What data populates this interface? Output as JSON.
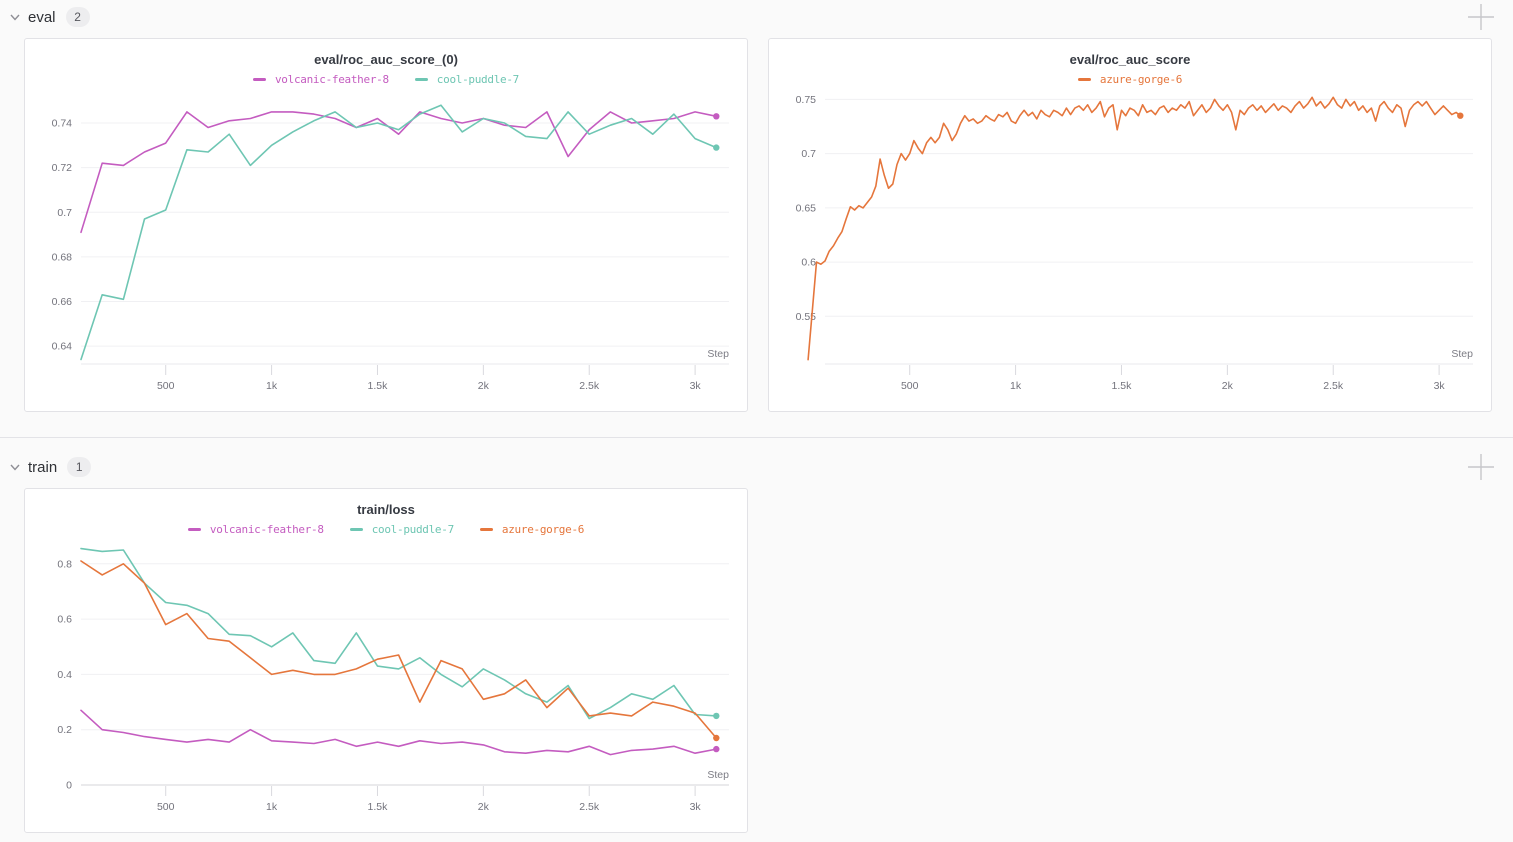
{
  "sections": [
    {
      "label": "eval",
      "count": "2"
    },
    {
      "label": "train",
      "count": "1"
    }
  ],
  "icons": {
    "collapse_chevron": "chevron-down",
    "add_panel": "plus"
  },
  "colors": {
    "volcanic_feather_8": "#c45cc0",
    "cool_puddle_7": "#6ec6b3",
    "azure_gorge_6": "#e5763c",
    "gridline": "#f0f0f3",
    "zero_line": "#d4d4d8",
    "axis_line": "#e8e8ec",
    "tick_mark": "#d9d9de",
    "tick_text": "#73737c",
    "step_text": "#7c7c84"
  },
  "chart_data": [
    {
      "type": "line",
      "title": "eval/roc_auc_score_(0)",
      "xlabel": "Step",
      "legend_position": "top",
      "grid": "horizontal",
      "xlim": [
        100,
        3160
      ],
      "ylim": [
        0.632,
        0.753
      ],
      "x_ticks": [
        500,
        1000,
        1500,
        2000,
        2500,
        3000
      ],
      "x_tick_labels": [
        "500",
        "1k",
        "1.5k",
        "2k",
        "2.5k",
        "3k"
      ],
      "y_ticks": [
        0.64,
        0.66,
        0.68,
        0.7,
        0.72,
        0.74
      ],
      "y_tick_labels": [
        "0.64",
        "0.66",
        "0.68",
        "0.7",
        "0.72",
        "0.74"
      ],
      "x": [
        100,
        200,
        300,
        400,
        500,
        600,
        700,
        800,
        900,
        1000,
        1100,
        1200,
        1300,
        1400,
        1500,
        1600,
        1700,
        1800,
        1900,
        2000,
        2100,
        2200,
        2300,
        2400,
        2500,
        2600,
        2700,
        2800,
        2900,
        3000,
        3100
      ],
      "series": [
        {
          "name": "volcanic-feather-8",
          "color": "#c45cc0",
          "values": [
            0.691,
            0.722,
            0.721,
            0.727,
            0.731,
            0.745,
            0.738,
            0.741,
            0.742,
            0.745,
            0.745,
            0.744,
            0.742,
            0.738,
            0.742,
            0.735,
            0.745,
            0.742,
            0.74,
            0.742,
            0.739,
            0.738,
            0.745,
            0.725,
            0.737,
            0.745,
            0.74,
            0.741,
            0.742,
            0.745,
            0.743
          ]
        },
        {
          "name": "cool-puddle-7",
          "color": "#6ec6b3",
          "values": [
            0.634,
            0.663,
            0.661,
            0.697,
            0.701,
            0.728,
            0.727,
            0.735,
            0.721,
            0.73,
            0.736,
            0.741,
            0.745,
            0.738,
            0.74,
            0.737,
            0.744,
            0.748,
            0.736,
            0.742,
            0.74,
            0.734,
            0.733,
            0.745,
            0.735,
            0.739,
            0.742,
            0.735,
            0.744,
            0.733,
            0.729
          ]
        }
      ]
    },
    {
      "type": "line",
      "title": "eval/roc_auc_score",
      "xlabel": "Step",
      "legend_position": "top",
      "grid": "horizontal",
      "xlim": [
        100,
        3160
      ],
      "ylim": [
        0.506,
        0.755
      ],
      "x_ticks": [
        500,
        1000,
        1500,
        2000,
        2500,
        3000
      ],
      "x_tick_labels": [
        "500",
        "1k",
        "1.5k",
        "2k",
        "2.5k",
        "3k"
      ],
      "y_ticks": [
        0.55,
        0.6,
        0.65,
        0.7,
        0.75
      ],
      "y_tick_labels": [
        "0.55",
        "0.6",
        "0.65",
        "0.7",
        "0.75"
      ],
      "x": [
        20,
        40,
        60,
        80,
        100,
        120,
        140,
        160,
        180,
        200,
        220,
        240,
        260,
        280,
        300,
        320,
        340,
        360,
        380,
        400,
        420,
        440,
        460,
        480,
        500,
        520,
        540,
        560,
        580,
        600,
        620,
        640,
        660,
        680,
        700,
        720,
        740,
        760,
        780,
        800,
        820,
        840,
        860,
        880,
        900,
        920,
        940,
        960,
        980,
        1000,
        1020,
        1040,
        1060,
        1080,
        1100,
        1120,
        1140,
        1160,
        1180,
        1200,
        1220,
        1240,
        1260,
        1280,
        1300,
        1320,
        1340,
        1360,
        1380,
        1400,
        1420,
        1440,
        1460,
        1480,
        1500,
        1520,
        1540,
        1560,
        1580,
        1600,
        1620,
        1640,
        1660,
        1680,
        1700,
        1720,
        1740,
        1760,
        1780,
        1800,
        1820,
        1840,
        1860,
        1880,
        1900,
        1920,
        1940,
        1960,
        1980,
        2000,
        2020,
        2040,
        2060,
        2080,
        2100,
        2120,
        2140,
        2160,
        2180,
        2200,
        2220,
        2240,
        2260,
        2280,
        2300,
        2320,
        2340,
        2360,
        2380,
        2400,
        2420,
        2440,
        2460,
        2480,
        2500,
        2520,
        2540,
        2560,
        2580,
        2600,
        2620,
        2640,
        2660,
        2680,
        2700,
        2720,
        2740,
        2760,
        2780,
        2800,
        2820,
        2840,
        2860,
        2880,
        2900,
        2920,
        2940,
        2960,
        2980,
        3000,
        3020,
        3040,
        3060,
        3080,
        3100
      ],
      "series": [
        {
          "name": "azure-gorge-6",
          "color": "#e5763c",
          "values": [
            0.51,
            0.555,
            0.6,
            0.598,
            0.601,
            0.61,
            0.615,
            0.622,
            0.628,
            0.64,
            0.651,
            0.648,
            0.652,
            0.65,
            0.655,
            0.66,
            0.67,
            0.695,
            0.68,
            0.668,
            0.672,
            0.69,
            0.7,
            0.694,
            0.7,
            0.712,
            0.705,
            0.7,
            0.71,
            0.715,
            0.71,
            0.715,
            0.728,
            0.722,
            0.712,
            0.718,
            0.728,
            0.735,
            0.73,
            0.732,
            0.728,
            0.73,
            0.735,
            0.732,
            0.73,
            0.736,
            0.734,
            0.738,
            0.73,
            0.728,
            0.735,
            0.74,
            0.735,
            0.738,
            0.732,
            0.74,
            0.736,
            0.734,
            0.74,
            0.738,
            0.735,
            0.742,
            0.736,
            0.742,
            0.744,
            0.74,
            0.745,
            0.738,
            0.742,
            0.748,
            0.734,
            0.742,
            0.745,
            0.722,
            0.74,
            0.735,
            0.742,
            0.74,
            0.735,
            0.745,
            0.738,
            0.74,
            0.736,
            0.742,
            0.744,
            0.738,
            0.742,
            0.74,
            0.745,
            0.742,
            0.748,
            0.735,
            0.74,
            0.745,
            0.738,
            0.742,
            0.75,
            0.744,
            0.74,
            0.745,
            0.738,
            0.722,
            0.74,
            0.736,
            0.742,
            0.745,
            0.74,
            0.744,
            0.738,
            0.742,
            0.746,
            0.74,
            0.744,
            0.742,
            0.738,
            0.744,
            0.748,
            0.742,
            0.746,
            0.752,
            0.744,
            0.748,
            0.742,
            0.746,
            0.752,
            0.745,
            0.742,
            0.75,
            0.744,
            0.748,
            0.74,
            0.744,
            0.738,
            0.742,
            0.73,
            0.744,
            0.748,
            0.742,
            0.738,
            0.745,
            0.742,
            0.725,
            0.74,
            0.745,
            0.748,
            0.744,
            0.748,
            0.742,
            0.736,
            0.74,
            0.744,
            0.74,
            0.736,
            0.738,
            0.735
          ]
        }
      ]
    },
    {
      "type": "line",
      "title": "train/loss",
      "xlabel": "Step",
      "legend_position": "top",
      "grid": "horizontal",
      "xlim": [
        100,
        3160
      ],
      "ylim": [
        0,
        0.868
      ],
      "x_ticks": [
        500,
        1000,
        1500,
        2000,
        2500,
        3000
      ],
      "x_tick_labels": [
        "500",
        "1k",
        "1.5k",
        "2k",
        "2.5k",
        "3k"
      ],
      "y_ticks": [
        0,
        0.2,
        0.4,
        0.6,
        0.8
      ],
      "y_tick_labels": [
        "0",
        "0.2",
        "0.4",
        "0.6",
        "0.8"
      ],
      "x": [
        100,
        200,
        300,
        400,
        500,
        600,
        700,
        800,
        900,
        1000,
        1100,
        1200,
        1300,
        1400,
        1500,
        1600,
        1700,
        1800,
        1900,
        2000,
        2100,
        2200,
        2300,
        2400,
        2500,
        2600,
        2700,
        2800,
        2900,
        3000,
        3100
      ],
      "series": [
        {
          "name": "volcanic-feather-8",
          "color": "#c45cc0",
          "values": [
            0.27,
            0.2,
            0.19,
            0.175,
            0.165,
            0.155,
            0.165,
            0.155,
            0.2,
            0.16,
            0.155,
            0.15,
            0.165,
            0.14,
            0.155,
            0.14,
            0.16,
            0.15,
            0.155,
            0.145,
            0.12,
            0.115,
            0.125,
            0.12,
            0.14,
            0.11,
            0.125,
            0.13,
            0.14,
            0.115,
            0.13
          ]
        },
        {
          "name": "cool-puddle-7",
          "color": "#6ec6b3",
          "values": [
            0.855,
            0.845,
            0.85,
            0.73,
            0.66,
            0.65,
            0.62,
            0.545,
            0.54,
            0.5,
            0.55,
            0.45,
            0.44,
            0.55,
            0.43,
            0.42,
            0.46,
            0.4,
            0.355,
            0.42,
            0.38,
            0.33,
            0.3,
            0.36,
            0.24,
            0.28,
            0.33,
            0.31,
            0.36,
            0.255,
            0.25
          ]
        },
        {
          "name": "azure-gorge-6",
          "color": "#e5763c",
          "values": [
            0.81,
            0.76,
            0.8,
            0.73,
            0.58,
            0.62,
            0.53,
            0.52,
            0.46,
            0.4,
            0.415,
            0.4,
            0.4,
            0.42,
            0.455,
            0.47,
            0.3,
            0.45,
            0.42,
            0.31,
            0.33,
            0.38,
            0.28,
            0.35,
            0.25,
            0.26,
            0.25,
            0.3,
            0.285,
            0.26,
            0.17
          ]
        }
      ]
    }
  ]
}
